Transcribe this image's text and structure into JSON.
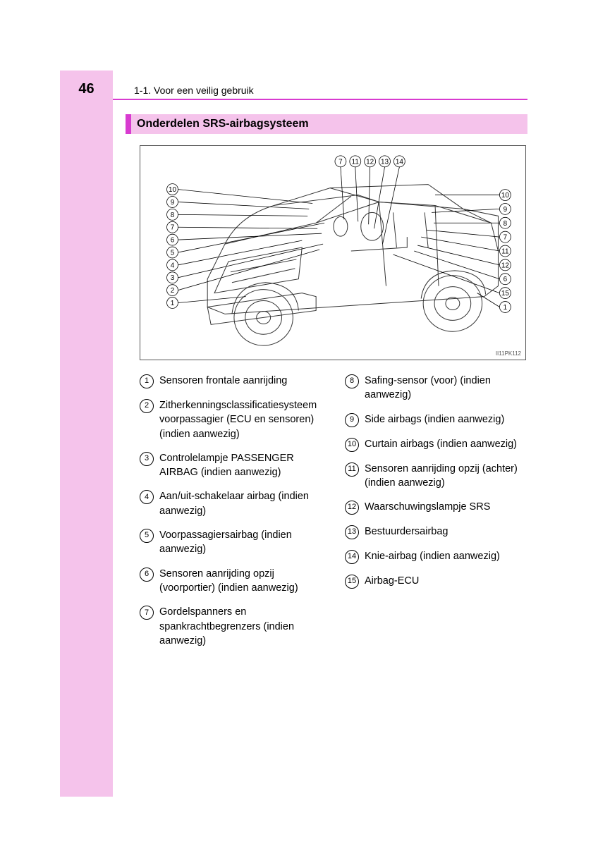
{
  "page_number": "46",
  "section_label": "1-1. Voor een veilig gebruik",
  "heading": "Onderdelen SRS-airbagsysteem",
  "diagram_code": "II11PK112",
  "colors": {
    "sidebar": "#f5c3eb",
    "accent": "#d83bd0",
    "heading_bg": "#f5c3eb",
    "text": "#000000",
    "border": "#555555"
  },
  "diagram": {
    "top_labels": [
      "7",
      "11",
      "12",
      "13",
      "14"
    ],
    "left_labels": [
      "10",
      "9",
      "8",
      "7",
      "6",
      "5",
      "4",
      "3",
      "2",
      "1"
    ],
    "right_labels": [
      "10",
      "9",
      "8",
      "7",
      "11",
      "12",
      "6",
      "15",
      "1"
    ]
  },
  "items_left": [
    {
      "n": "1",
      "text": "Sensoren frontale aanrijding"
    },
    {
      "n": "2",
      "text": "Zitherkenningsclassificatiesysteem voorpassagier (ECU en sensoren) (indien aanwezig)"
    },
    {
      "n": "3",
      "text": "Controlelampje PASSENGER AIRBAG (indien aanwezig)"
    },
    {
      "n": "4",
      "text": "Aan/uit-schakelaar airbag (indien aanwezig)"
    },
    {
      "n": "5",
      "text": "Voorpassagiersairbag (indien aanwezig)"
    },
    {
      "n": "6",
      "text": "Sensoren aanrijding opzij (voorportier) (indien aanwezig)"
    },
    {
      "n": "7",
      "text": "Gordelspanners en spankrachtbegrenzers (indien aanwezig)"
    }
  ],
  "items_right": [
    {
      "n": "8",
      "text": "Safing-sensor (voor) (indien aanwezig)"
    },
    {
      "n": "9",
      "text": "Side airbags (indien aanwezig)"
    },
    {
      "n": "10",
      "text": "Curtain airbags (indien aanwezig)"
    },
    {
      "n": "11",
      "text": "Sensoren aanrijding opzij (achter) (indien aanwezig)"
    },
    {
      "n": "12",
      "text": "Waarschuwingslampje SRS"
    },
    {
      "n": "13",
      "text": "Bestuurdersairbag"
    },
    {
      "n": "14",
      "text": "Knie-airbag (indien aanwezig)"
    },
    {
      "n": "15",
      "text": "Airbag-ECU"
    }
  ]
}
